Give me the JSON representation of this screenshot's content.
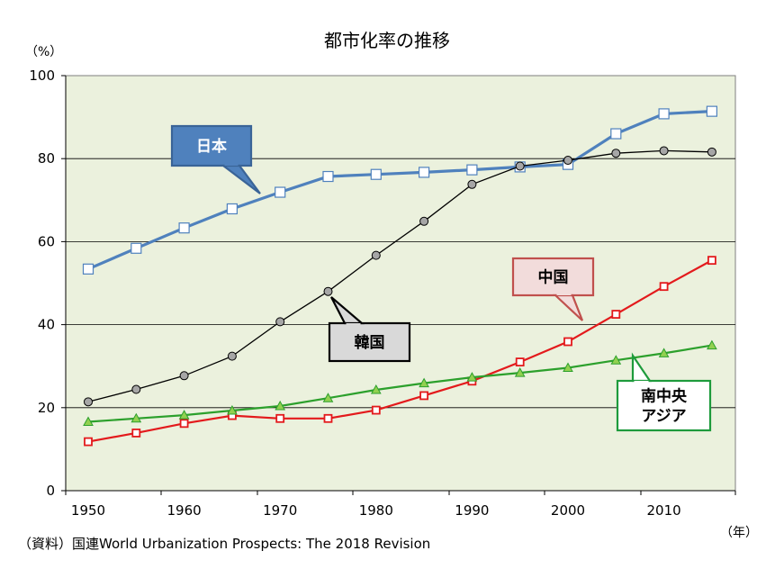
{
  "chart_data": {
    "type": "line",
    "title": "都市化率の推移",
    "ylabel": "（%）",
    "xlabel": "（年）",
    "source": "（資料）国連World Urbanization Prospects: The 2018 Revision",
    "ylim": [
      0,
      100
    ],
    "xlim": [
      1950,
      2018
    ],
    "y_ticks": [
      0,
      20,
      40,
      60,
      80,
      100
    ],
    "x_ticks": [
      1950,
      1960,
      1970,
      1980,
      1990,
      2000,
      2010
    ],
    "grid": "horizontal",
    "plot_background": "#ebf1dd",
    "series": [
      {
        "name": "日本",
        "color": "#4f81bd",
        "marker": "square",
        "x": [
          1950,
          1955,
          1960,
          1965,
          1970,
          1975,
          1980,
          1985,
          1990,
          1995,
          2000,
          2005,
          2010,
          2015
        ],
        "values": [
          53.4,
          58.4,
          63.3,
          67.9,
          71.9,
          75.7,
          76.2,
          76.7,
          77.3,
          78.0,
          78.6,
          86.0,
          90.8,
          91.4
        ]
      },
      {
        "name": "韓国",
        "color": "#000000",
        "marker": "circle",
        "x": [
          1950,
          1955,
          1960,
          1965,
          1970,
          1975,
          1980,
          1985,
          1990,
          1995,
          2000,
          2005,
          2010,
          2015
        ],
        "values": [
          21.4,
          24.4,
          27.7,
          32.4,
          40.7,
          48.0,
          56.7,
          64.9,
          73.8,
          78.2,
          79.6,
          81.3,
          81.9,
          81.6
        ]
      },
      {
        "name": "中国",
        "color": "#e31a1c",
        "marker": "square",
        "x": [
          1950,
          1955,
          1960,
          1965,
          1970,
          1975,
          1980,
          1985,
          1990,
          1995,
          2000,
          2005,
          2010,
          2015
        ],
        "values": [
          11.8,
          13.9,
          16.2,
          18.1,
          17.4,
          17.4,
          19.4,
          22.9,
          26.4,
          31.0,
          35.9,
          42.5,
          49.2,
          55.5
        ]
      },
      {
        "name": "南中央アジア",
        "color": "#2ca02c",
        "marker": "triangle",
        "x": [
          1950,
          1955,
          1960,
          1965,
          1970,
          1975,
          1980,
          1985,
          1990,
          1995,
          2000,
          2005,
          2010,
          2015
        ],
        "values": [
          16.6,
          17.4,
          18.2,
          19.3,
          20.4,
          22.3,
          24.3,
          25.9,
          27.3,
          28.4,
          29.6,
          31.4,
          33.1,
          35.0
        ]
      }
    ],
    "callouts": [
      {
        "lines": [
          "日本"
        ],
        "series": 0,
        "fill": "#4f81bd",
        "stroke": "#3a6497",
        "text_color": "#ffffff"
      },
      {
        "lines": [
          "韓国"
        ],
        "series": 1,
        "fill": "#d9d9d9",
        "stroke": "#000000",
        "text_color": "#000000"
      },
      {
        "lines": [
          "中国"
        ],
        "series": 2,
        "fill": "#f2dcdb",
        "stroke": "#c0504d",
        "text_color": "#000000"
      },
      {
        "lines": [
          "南中央",
          "アジア"
        ],
        "series": 3,
        "fill": "#ffffff",
        "stroke": "#1e9b3c",
        "text_color": "#000000"
      }
    ]
  }
}
